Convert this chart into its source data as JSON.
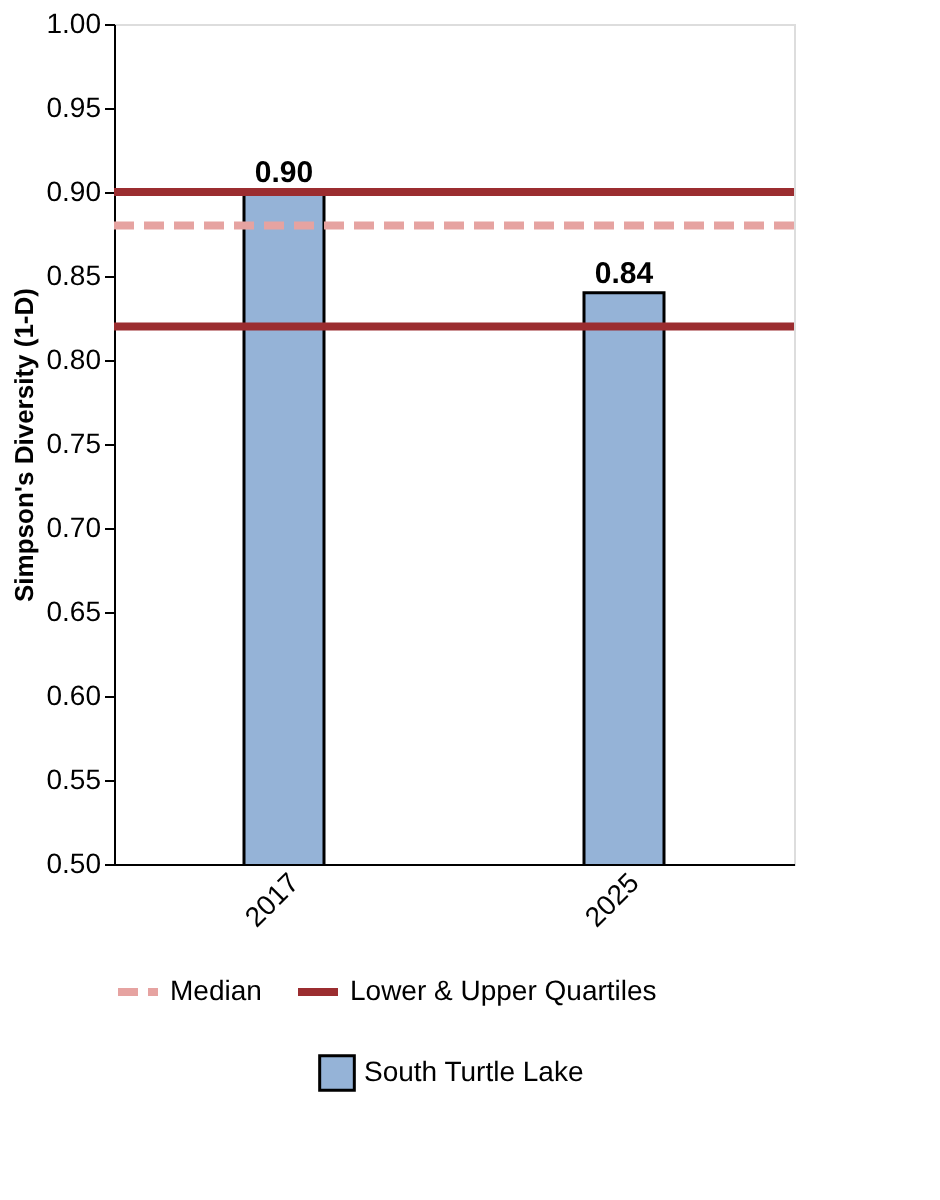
{
  "chart_data": {
    "type": "bar",
    "ylabel": "Simpson's Diversity (1-D)",
    "categories": [
      "2017",
      "2025"
    ],
    "series": [
      {
        "name": "South Turtle Lake",
        "color": "#95b3d7",
        "values": [
          0.9,
          0.84
        ],
        "value_labels": [
          "0.90",
          "0.84"
        ]
      }
    ],
    "ylim": [
      0.5,
      1.0
    ],
    "yticks": [
      {
        "value": 0.5,
        "label": "0.50"
      },
      {
        "value": 0.55,
        "label": "0.55"
      },
      {
        "value": 0.6,
        "label": "0.60"
      },
      {
        "value": 0.65,
        "label": "0.65"
      },
      {
        "value": 0.7,
        "label": "0.70"
      },
      {
        "value": 0.75,
        "label": "0.75"
      },
      {
        "value": 0.8,
        "label": "0.80"
      },
      {
        "value": 0.85,
        "label": "0.85"
      },
      {
        "value": 0.9,
        "label": "0.90"
      },
      {
        "value": 0.95,
        "label": "0.95"
      },
      {
        "value": 1.0,
        "label": "1.00"
      }
    ],
    "ref_lines": [
      {
        "axis": "y",
        "value": 0.88,
        "label": "Median",
        "color": "#e6a3a1",
        "line_style": "dashed"
      },
      {
        "axis": "y",
        "value": 0.82,
        "label": "Lower & Upper Quartiles",
        "color": "#9b2d30",
        "line_style": "solid"
      },
      {
        "axis": "y",
        "value": 0.9,
        "color": "#9b2d30",
        "line_style": "solid"
      }
    ],
    "legend": "bottom"
  }
}
